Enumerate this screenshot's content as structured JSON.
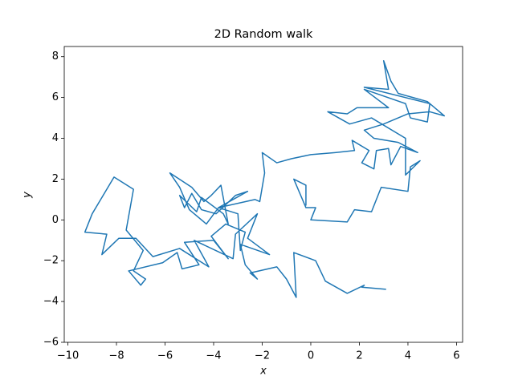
{
  "chart_data": {
    "type": "line",
    "title": "2D Random walk",
    "x_label": "x",
    "y_label": "y",
    "xlim": [
      -10.15,
      6.25
    ],
    "ylim": [
      -6.0,
      8.5
    ],
    "xticks": [
      {
        "value": -10,
        "label": "−10"
      },
      {
        "value": -8,
        "label": "−8"
      },
      {
        "value": -6,
        "label": "−6"
      },
      {
        "value": -4,
        "label": "−4"
      },
      {
        "value": -2,
        "label": "−2"
      },
      0,
      2,
      4,
      6
    ],
    "yticks": [
      {
        "value": -6,
        "label": "−6"
      },
      {
        "value": -4,
        "label": "−4"
      },
      {
        "value": -2,
        "label": "−2"
      },
      0,
      2,
      4,
      6,
      8
    ],
    "series": [
      {
        "color": "#1f77b4",
        "x": [
          3.1,
          2.1,
          2.2,
          1.5,
          0.6,
          0.2,
          -0.7,
          -0.6,
          -1.0,
          -1.4,
          -2.5,
          -2.2,
          -2.7,
          -2.9,
          -1.7,
          -2.6,
          -2.2,
          -3.1,
          -3.2,
          -4.8,
          -4.2,
          -5.4,
          -6.5,
          -7.2,
          -7.9,
          -8.6,
          -8.4,
          -9.3,
          -9.0,
          -8.5,
          -8.1,
          -7.3,
          -7.6,
          -6.9,
          -7.3,
          -6.8,
          -7.0,
          -7.5,
          -6.1,
          -5.5,
          -5.3,
          -4.6,
          -5.2,
          -4.0,
          -3.4,
          -4.1,
          -3.5,
          -2.7,
          -2.9,
          -3.0,
          -3.8,
          -4.3,
          -5.0,
          -5.4,
          -5.8,
          -4.9,
          -4.4,
          -4.1,
          -3.7,
          -3.4,
          -3.6,
          -4.5,
          -4.7,
          -5.4,
          -5.2,
          -4.9,
          -4.5,
          -3.9,
          -3.1,
          -2.6,
          -3.8,
          -2.3,
          -2.1,
          -1.9,
          -2.0,
          -1.4,
          -0.8,
          0.0,
          1.0,
          1.8,
          1.7,
          2.4,
          2.1,
          2.6,
          2.7,
          3.2,
          3.3,
          3.7,
          4.4,
          3.6,
          2.6,
          2.2,
          3.0,
          4.0,
          4.9,
          5.5,
          4.8,
          3.6,
          3.3,
          3.0,
          3.2,
          2.2,
          4.9,
          4.8,
          4.1,
          3.9,
          2.2,
          3.2,
          1.9,
          1.5,
          0.7,
          1.6,
          2.5,
          3.9,
          3.9,
          4.5,
          4.1,
          4.0,
          2.9,
          2.5,
          1.8,
          1.5,
          0.0,
          0.2,
          -0.2,
          -0.7,
          -0.2,
          -0.2
        ],
        "values": [
          -3.4,
          -3.3,
          -3.2,
          -3.6,
          -3.0,
          -2.0,
          -1.6,
          -3.8,
          -2.9,
          -2.3,
          -2.6,
          -2.9,
          -2.2,
          -1.2,
          -1.7,
          -0.9,
          0.3,
          -0.7,
          -1.9,
          -1.0,
          -2.3,
          -1.4,
          -1.8,
          -0.9,
          -0.9,
          -1.7,
          -0.7,
          -0.6,
          0.3,
          1.3,
          2.1,
          1.5,
          -0.5,
          -1.5,
          -2.5,
          -2.9,
          -3.2,
          -2.5,
          -2.1,
          -1.6,
          -2.4,
          -2.2,
          -1.1,
          -1.0,
          -1.9,
          -0.8,
          -0.2,
          -0.6,
          -1.5,
          0.3,
          0.6,
          -0.2,
          0.5,
          1.6,
          2.3,
          1.6,
          0.9,
          1.2,
          1.7,
          -0.2,
          0.3,
          1.1,
          0.4,
          1.2,
          0.6,
          1.3,
          0.5,
          0.3,
          1.2,
          1.4,
          0.6,
          1.0,
          0.9,
          2.3,
          3.3,
          2.8,
          3.0,
          3.2,
          3.3,
          3.4,
          3.9,
          3.4,
          2.8,
          2.5,
          3.4,
          3.5,
          2.7,
          3.6,
          3.3,
          3.8,
          4.0,
          4.4,
          4.7,
          5.2,
          5.3,
          5.1,
          5.8,
          6.2,
          6.8,
          7.8,
          6.4,
          6.5,
          5.7,
          4.8,
          5.0,
          5.7,
          6.4,
          5.5,
          5.5,
          5.2,
          5.3,
          4.7,
          5.0,
          4.0,
          2.2,
          2.9,
          2.6,
          1.4,
          1.6,
          0.4,
          0.5,
          -0.1,
          0.0,
          0.6,
          0.6,
          2.0,
          1.7,
          0.7
        ]
      }
    ]
  }
}
